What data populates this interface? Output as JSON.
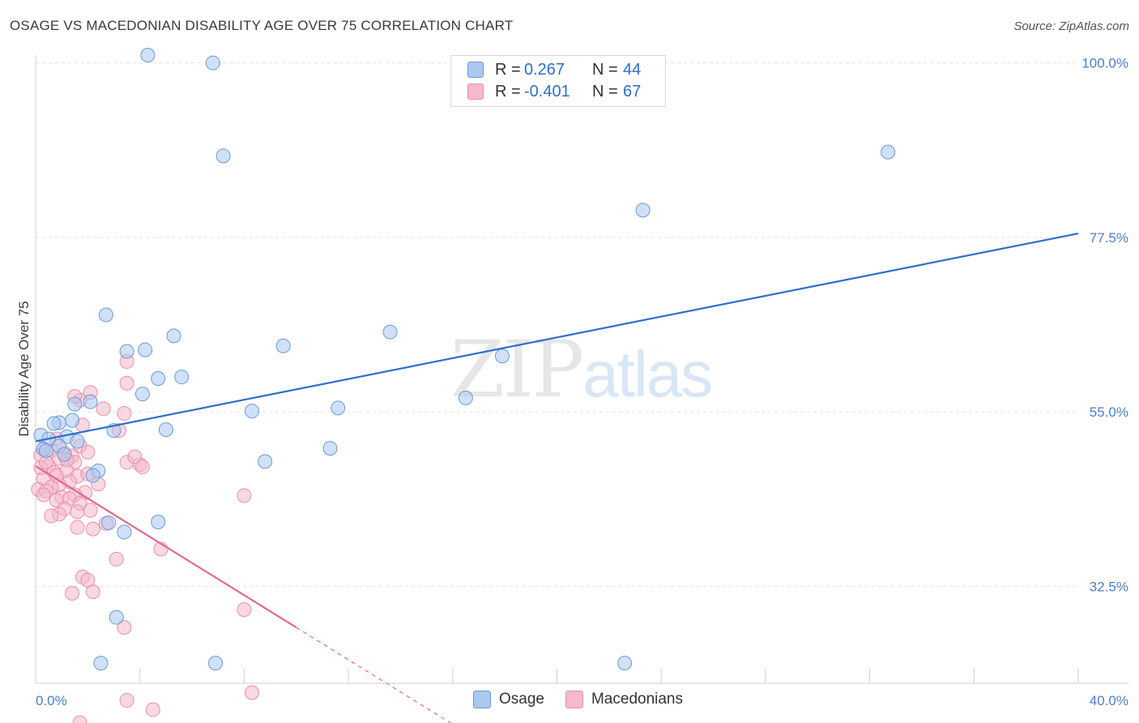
{
  "title": "OSAGE VS MACEDONIAN DISABILITY AGE OVER 75 CORRELATION CHART",
  "source": "Source: ZipAtlas.com",
  "watermark": {
    "zip": "ZIP",
    "atlas": "atlas"
  },
  "legend": {
    "rows": [
      {
        "r_label": "R =",
        "r_value": "0.267",
        "n_label": "N =",
        "n_value": "44"
      },
      {
        "r_label": "R =",
        "r_value": "-0.401",
        "n_label": "N =",
        "n_value": "67"
      }
    ]
  },
  "bottom_legend": {
    "osage": "Osage",
    "macedonians": "Macedonians"
  },
  "colors": {
    "osage_fill": "#aac8f0",
    "osage_stroke": "#6a9ad8",
    "osage_line": "#2f6fca",
    "mac_fill": "#f6b8cb",
    "mac_stroke": "#e890ab",
    "mac_line": "#e2688f",
    "tick_label": "#4a7fcc",
    "grid": "#e2e2e2"
  },
  "chart_data": {
    "type": "scatter",
    "xlabel": "",
    "ylabel": "Disability Age Over 75",
    "xlim": [
      0,
      40
    ],
    "ylim": [
      20,
      101
    ],
    "x_tick_labels": [
      "0.0%",
      "40.0%"
    ],
    "y_ticks": [
      32.5,
      55.0,
      77.5,
      100.0
    ],
    "y_tick_labels": [
      "32.5%",
      "55.0%",
      "77.5%",
      "100.0%"
    ],
    "legend_position": "top-center",
    "grid": true,
    "series": [
      {
        "name": "Osage",
        "trend": {
          "x": [
            0,
            40
          ],
          "y": [
            51.2,
            78.0
          ],
          "dashed_from": null
        },
        "points": [
          [
            4.3,
            101.0
          ],
          [
            6.8,
            100.0
          ],
          [
            7.2,
            88.0
          ],
          [
            32.7,
            88.5
          ],
          [
            23.3,
            81.0
          ],
          [
            2.7,
            67.5
          ],
          [
            4.2,
            63.0
          ],
          [
            3.5,
            62.8
          ],
          [
            5.3,
            64.8
          ],
          [
            9.5,
            63.5
          ],
          [
            13.6,
            65.3
          ],
          [
            17.9,
            62.2
          ],
          [
            4.7,
            59.3
          ],
          [
            5.6,
            59.5
          ],
          [
            4.1,
            57.3
          ],
          [
            2.1,
            56.3
          ],
          [
            1.4,
            53.9
          ],
          [
            16.5,
            56.8
          ],
          [
            0.9,
            53.6
          ],
          [
            0.7,
            53.5
          ],
          [
            1.5,
            56.0
          ],
          [
            11.6,
            55.5
          ],
          [
            8.3,
            55.1
          ],
          [
            0.2,
            52.0
          ],
          [
            0.5,
            51.5
          ],
          [
            1.2,
            51.8
          ],
          [
            1.6,
            51.2
          ],
          [
            3.0,
            52.6
          ],
          [
            5.0,
            52.7
          ],
          [
            0.9,
            50.6
          ],
          [
            0.3,
            50.2
          ],
          [
            11.3,
            50.3
          ],
          [
            8.8,
            48.6
          ],
          [
            2.4,
            47.4
          ],
          [
            2.2,
            46.8
          ],
          [
            4.7,
            40.8
          ],
          [
            2.8,
            40.7
          ],
          [
            3.4,
            39.5
          ],
          [
            3.1,
            28.5
          ],
          [
            2.5,
            22.6
          ],
          [
            6.9,
            22.6
          ],
          [
            22.6,
            22.6
          ],
          [
            0.4,
            50.0
          ],
          [
            1.1,
            49.5
          ]
        ]
      },
      {
        "name": "Macedonians",
        "trend": {
          "x": [
            0,
            10
          ],
          "y": [
            48.0,
            27.2
          ],
          "dashed_to": [
            17.5,
            11.6
          ]
        },
        "points": [
          [
            3.5,
            61.5
          ],
          [
            3.5,
            58.7
          ],
          [
            2.1,
            57.5
          ],
          [
            1.7,
            56.5
          ],
          [
            1.5,
            57.0
          ],
          [
            2.6,
            55.4
          ],
          [
            3.4,
            54.8
          ],
          [
            1.8,
            53.3
          ],
          [
            3.2,
            52.6
          ],
          [
            0.8,
            51.5
          ],
          [
            1.7,
            50.6
          ],
          [
            0.3,
            50.2
          ],
          [
            1.1,
            49.7
          ],
          [
            1.4,
            49.3
          ],
          [
            2.0,
            49.8
          ],
          [
            0.6,
            50.0
          ],
          [
            0.2,
            49.4
          ],
          [
            0.9,
            49.0
          ],
          [
            1.5,
            48.5
          ],
          [
            3.5,
            48.5
          ],
          [
            4.0,
            48.2
          ],
          [
            3.8,
            49.2
          ],
          [
            4.1,
            47.9
          ],
          [
            0.5,
            48.0
          ],
          [
            0.7,
            47.2
          ],
          [
            1.2,
            47.4
          ],
          [
            0.3,
            46.4
          ],
          [
            0.2,
            47.8
          ],
          [
            1.6,
            46.7
          ],
          [
            1.3,
            46.0
          ],
          [
            0.9,
            45.6
          ],
          [
            0.1,
            45.0
          ],
          [
            0.6,
            45.3
          ],
          [
            0.4,
            44.8
          ],
          [
            0.3,
            44.3
          ],
          [
            1.9,
            44.6
          ],
          [
            1.5,
            44.3
          ],
          [
            1.0,
            44.0
          ],
          [
            1.3,
            43.8
          ],
          [
            0.8,
            43.6
          ],
          [
            1.7,
            43.2
          ],
          [
            8.0,
            44.2
          ],
          [
            2.1,
            42.3
          ],
          [
            1.1,
            42.5
          ],
          [
            1.6,
            42.1
          ],
          [
            0.9,
            41.8
          ],
          [
            0.6,
            41.6
          ],
          [
            2.7,
            40.6
          ],
          [
            1.6,
            40.1
          ],
          [
            2.2,
            39.9
          ],
          [
            4.8,
            37.3
          ],
          [
            3.1,
            36.0
          ],
          [
            1.8,
            33.7
          ],
          [
            2.0,
            33.3
          ],
          [
            1.4,
            31.6
          ],
          [
            2.2,
            31.8
          ],
          [
            8.0,
            29.5
          ],
          [
            3.4,
            27.2
          ],
          [
            3.5,
            17.8
          ],
          [
            4.5,
            16.6
          ],
          [
            8.3,
            18.8
          ],
          [
            1.7,
            14.9
          ],
          [
            0.4,
            48.5
          ],
          [
            2.0,
            47.0
          ],
          [
            1.2,
            48.8
          ],
          [
            0.8,
            46.8
          ],
          [
            2.4,
            45.7
          ]
        ]
      }
    ]
  }
}
